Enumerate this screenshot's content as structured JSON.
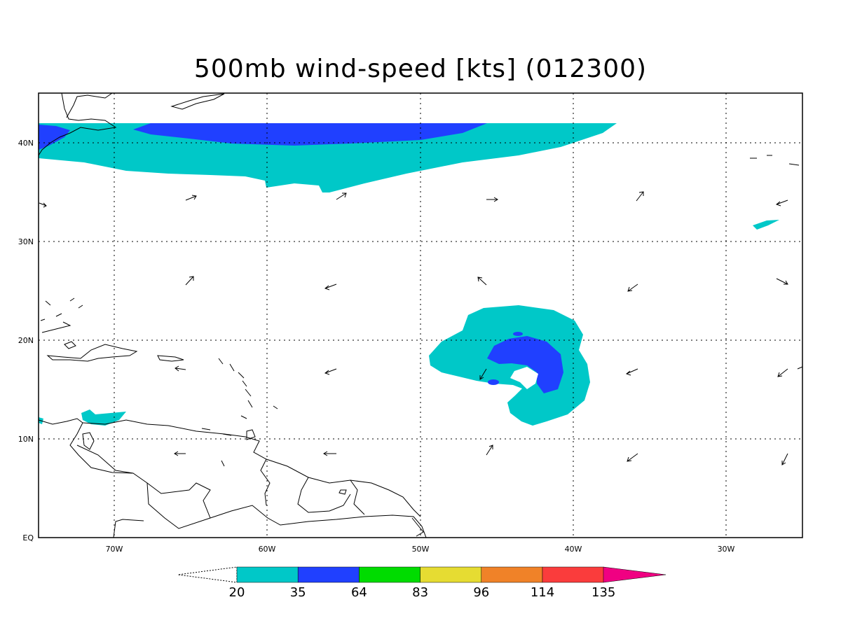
{
  "title": "500mb wind-speed [kts] (012300)",
  "lon_labels": [
    "70W",
    "60W",
    "50W",
    "40W",
    "30W"
  ],
  "lat_labels": [
    "40N",
    "30N",
    "20N",
    "10N",
    "EQ"
  ],
  "colorbar": {
    "levels": [
      "20",
      "35",
      "64",
      "83",
      "96",
      "114",
      "135"
    ],
    "colors": [
      "#00c8c8",
      "#2040ff",
      "#00dc00",
      "#e6dc32",
      "#f08228",
      "#fa3c3c",
      "#f00082"
    ]
  },
  "colors": {
    "shade_20_35": "#00c8c8",
    "shade_35_64": "#2040ff",
    "coastline": "#000000"
  }
}
